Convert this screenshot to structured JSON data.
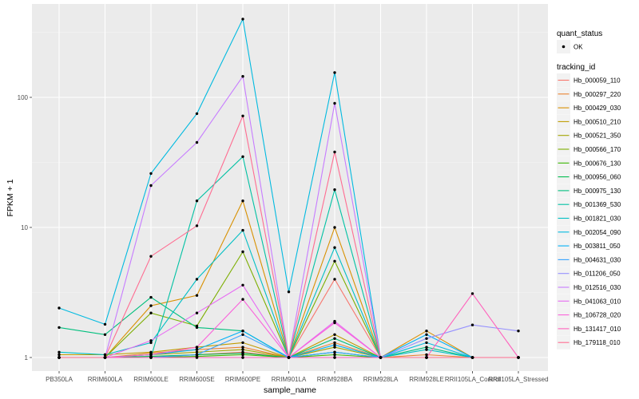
{
  "chart_data": {
    "type": "line",
    "xlabel": "sample_name",
    "ylabel": "FPKM + 1",
    "y_scale": "log10",
    "y_ticks": [
      1,
      10,
      100
    ],
    "categories": [
      "PB350LA",
      "RRIM600LA",
      "RRIM600LE",
      "RRIM600SE",
      "RRIM600PE",
      "RRIM901LA",
      "RRIM928BA",
      "RRIM928LA",
      "RRIM928LE",
      "RRII105LA_Control",
      "RRII105LA_Stressed"
    ],
    "legend_quant": {
      "title": "quant_status",
      "items": [
        "OK"
      ]
    },
    "legend_series_title": "tracking_id",
    "background": "#ebebeb",
    "grid": true,
    "series": [
      {
        "name": "Hb_000059_110",
        "color": "#F8766D",
        "values": [
          1.0,
          1.0,
          1.0,
          1.05,
          1.1,
          1.0,
          4.0,
          1.0,
          1.0,
          1.0,
          1.0
        ]
      },
      {
        "name": "Hb_000297_220",
        "color": "#EA8331",
        "values": [
          1.0,
          1.0,
          1.08,
          1.15,
          1.2,
          1.0,
          1.3,
          1.0,
          1.05,
          1.0,
          1.0
        ]
      },
      {
        "name": "Hb_000429_030",
        "color": "#D89000",
        "values": [
          1.0,
          1.0,
          2.5,
          3.0,
          16.0,
          1.0,
          10.0,
          1.0,
          1.6,
          1.0,
          1.0
        ]
      },
      {
        "name": "Hb_000510_210",
        "color": "#C09B00",
        "values": [
          1.05,
          1.05,
          1.1,
          1.2,
          1.3,
          1.0,
          1.5,
          1.0,
          1.0,
          1.0,
          1.0
        ]
      },
      {
        "name": "Hb_000521_350",
        "color": "#A3A500",
        "values": [
          1.0,
          1.0,
          1.05,
          1.1,
          1.15,
          1.0,
          1.2,
          1.0,
          1.0,
          1.0,
          1.0
        ]
      },
      {
        "name": "Hb_000566_170",
        "color": "#7CAE00",
        "values": [
          1.0,
          1.0,
          2.2,
          1.75,
          6.5,
          1.0,
          5.5,
          1.0,
          1.0,
          1.0,
          1.0
        ]
      },
      {
        "name": "Hb_000676_130",
        "color": "#39B600",
        "values": [
          1.0,
          1.0,
          1.0,
          1.02,
          1.05,
          1.0,
          1.05,
          1.0,
          1.0,
          1.0,
          1.0
        ]
      },
      {
        "name": "Hb_000956_060",
        "color": "#00BB4E",
        "values": [
          1.0,
          1.0,
          1.02,
          1.05,
          1.08,
          1.0,
          1.1,
          1.0,
          1.0,
          1.0,
          1.0
        ]
      },
      {
        "name": "Hb_000975_130",
        "color": "#00BF7D",
        "values": [
          1.7,
          1.5,
          2.9,
          1.7,
          1.6,
          1.0,
          1.4,
          1.0,
          1.2,
          1.0,
          1.0
        ]
      },
      {
        "name": "Hb_001369_530",
        "color": "#00C1A3",
        "values": [
          1.0,
          1.0,
          1.0,
          16.0,
          35.0,
          1.0,
          19.5,
          1.0,
          1.0,
          1.0,
          1.0
        ]
      },
      {
        "name": "Hb_001821_030",
        "color": "#00BFC4",
        "values": [
          1.1,
          1.05,
          1.3,
          4.0,
          9.5,
          1.0,
          7.0,
          1.0,
          1.15,
          1.0,
          1.0
        ]
      },
      {
        "name": "Hb_002054_090",
        "color": "#00BAE0",
        "values": [
          2.4,
          1.8,
          26.0,
          75.0,
          400.0,
          3.2,
          155.0,
          1.0,
          1.3,
          1.0,
          1.0
        ]
      },
      {
        "name": "Hb_003811_050",
        "color": "#00B0F6",
        "values": [
          1.0,
          1.0,
          1.05,
          1.15,
          1.6,
          1.0,
          1.25,
          1.0,
          1.5,
          1.0,
          1.0
        ]
      },
      {
        "name": "Hb_004631_030",
        "color": "#35A2FF",
        "values": [
          1.0,
          1.0,
          1.0,
          1.05,
          1.5,
          1.0,
          1.1,
          1.0,
          1.0,
          1.0,
          1.0
        ]
      },
      {
        "name": "Hb_011206_050",
        "color": "#9590FF",
        "values": [
          1.0,
          1.0,
          1.0,
          1.0,
          1.0,
          1.0,
          1.0,
          1.0,
          1.4,
          1.78,
          1.6
        ]
      },
      {
        "name": "Hb_012516_030",
        "color": "#C77CFF",
        "values": [
          1.0,
          1.0,
          21.0,
          45.0,
          145.0,
          1.0,
          90.0,
          1.0,
          1.0,
          1.0,
          1.0
        ]
      },
      {
        "name": "Hb_041063_010",
        "color": "#E76BF3",
        "values": [
          1.0,
          1.0,
          1.35,
          2.2,
          3.6,
          1.0,
          1.9,
          1.0,
          1.0,
          1.0,
          1.0
        ]
      },
      {
        "name": "Hb_106728_020",
        "color": "#FA62DB",
        "values": [
          1.0,
          1.0,
          1.05,
          1.2,
          2.8,
          1.0,
          1.85,
          1.0,
          1.0,
          1.0,
          1.0
        ]
      },
      {
        "name": "Hb_131417_010",
        "color": "#FF62BC",
        "values": [
          1.0,
          1.0,
          1.0,
          1.0,
          1.0,
          1.0,
          1.0,
          1.0,
          1.0,
          3.1,
          1.0
        ]
      },
      {
        "name": "Hb_179118_010",
        "color": "#FF6C91",
        "values": [
          1.0,
          1.0,
          6.0,
          10.3,
          72.0,
          1.0,
          38.0,
          1.0,
          1.0,
          1.0,
          1.0
        ]
      }
    ]
  }
}
